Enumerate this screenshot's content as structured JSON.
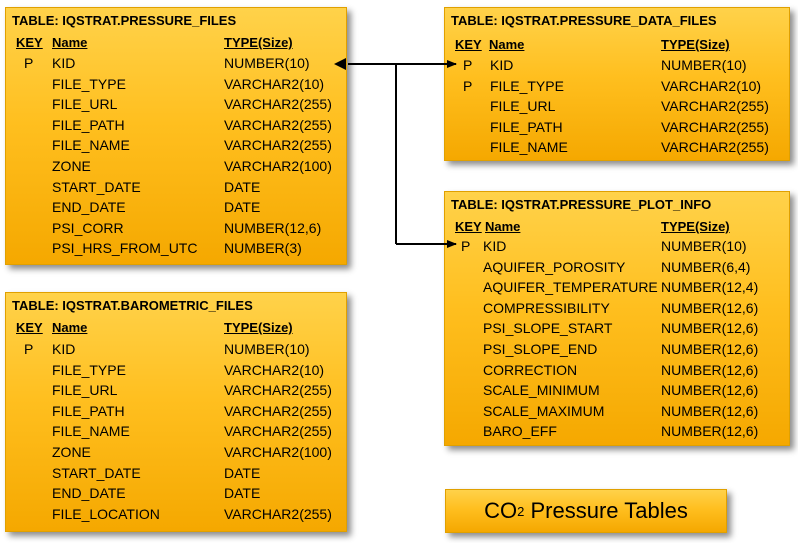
{
  "tables": [
    {
      "id": "t1",
      "title": "TABLE: IQSTRAT.PRESSURE_FILES",
      "headers": {
        "key": "KEY",
        "name": "Name",
        "type": "TYPE(Size)"
      },
      "rows": [
        {
          "key": "P",
          "name": "KID",
          "type": "NUMBER(10)"
        },
        {
          "key": "",
          "name": "FILE_TYPE",
          "type": "VARCHAR2(10)"
        },
        {
          "key": "",
          "name": "FILE_URL",
          "type": "VARCHAR2(255)"
        },
        {
          "key": "",
          "name": "FILE_PATH",
          "type": "VARCHAR2(255)"
        },
        {
          "key": "",
          "name": "FILE_NAME",
          "type": "VARCHAR2(255)"
        },
        {
          "key": "",
          "name": "ZONE",
          "type": "VARCHAR2(100)"
        },
        {
          "key": "",
          "name": "START_DATE",
          "type": "DATE"
        },
        {
          "key": "",
          "name": "END_DATE",
          "type": "DATE"
        },
        {
          "key": "",
          "name": "PSI_CORR",
          "type": "NUMBER(12,6)"
        },
        {
          "key": "",
          "name": "PSI_HRS_FROM_UTC",
          "type": "NUMBER(3)"
        }
      ]
    },
    {
      "id": "t2",
      "title": "TABLE: IQSTRAT.BAROMETRIC_FILES",
      "headers": {
        "key": "KEY",
        "name": "Name",
        "type": "TYPE(Size)"
      },
      "rows": [
        {
          "key": "P",
          "name": "KID",
          "type": "NUMBER(10)"
        },
        {
          "key": "",
          "name": "FILE_TYPE",
          "type": "VARCHAR2(10)"
        },
        {
          "key": "",
          "name": "FILE_URL",
          "type": "VARCHAR2(255)"
        },
        {
          "key": "",
          "name": "FILE_PATH",
          "type": "VARCHAR2(255)"
        },
        {
          "key": "",
          "name": "FILE_NAME",
          "type": "VARCHAR2(255)"
        },
        {
          "key": "",
          "name": "ZONE",
          "type": "VARCHAR2(100)"
        },
        {
          "key": "",
          "name": "START_DATE",
          "type": "DATE"
        },
        {
          "key": "",
          "name": "END_DATE",
          "type": "DATE"
        },
        {
          "key": "",
          "name": "FILE_LOCATION",
          "type": "VARCHAR2(255)"
        }
      ]
    },
    {
      "id": "t3",
      "title": "TABLE: IQSTRAT.PRESSURE_DATA_FILES",
      "headers": {
        "key": "KEY",
        "name": "Name",
        "type": "TYPE(Size)"
      },
      "rows": [
        {
          "key": "P",
          "name": "KID",
          "type": "NUMBER(10)"
        },
        {
          "key": "P",
          "name": "FILE_TYPE",
          "type": "VARCHAR2(10)"
        },
        {
          "key": "",
          "name": "FILE_URL",
          "type": "VARCHAR2(255)"
        },
        {
          "key": "",
          "name": "FILE_PATH",
          "type": "VARCHAR2(255)"
        },
        {
          "key": "",
          "name": "FILE_NAME",
          "type": "VARCHAR2(255)"
        }
      ]
    },
    {
      "id": "t4",
      "title": "TABLE: IQSTRAT.PRESSURE_PLOT_INFO",
      "headers": {
        "key": "KEY",
        "name": "Name",
        "type": "TYPE(Size)"
      },
      "rows": [
        {
          "key": "P",
          "name": "KID",
          "type": "NUMBER(10)"
        },
        {
          "key": "",
          "name": "AQUIFER_POROSITY",
          "type": "NUMBER(6,4)"
        },
        {
          "key": "",
          "name": "AQUIFER_TEMPERATURE",
          "type": "NUMBER(12,4)"
        },
        {
          "key": "",
          "name": "COMPRESSIBILITY",
          "type": "NUMBER(12,6)"
        },
        {
          "key": "",
          "name": "PSI_SLOPE_START",
          "type": "NUMBER(12,6)"
        },
        {
          "key": "",
          "name": "PSI_SLOPE_END",
          "type": "NUMBER(12,6)"
        },
        {
          "key": "",
          "name": "CORRECTION",
          "type": "NUMBER(12,6)"
        },
        {
          "key": "",
          "name": "SCALE_MINIMUM",
          "type": "NUMBER(12,6)"
        },
        {
          "key": "",
          "name": "SCALE_MAXIMUM",
          "type": "NUMBER(12,6)"
        },
        {
          "key": "",
          "name": "BARO_EFF",
          "type": "NUMBER(12,6)"
        }
      ]
    }
  ],
  "legend": {
    "prefix": "CO",
    "subscript": "2",
    "suffix": " Pressure Tables"
  },
  "colors": {
    "box_fill": "#ffc21f",
    "connector": "#000000"
  }
}
